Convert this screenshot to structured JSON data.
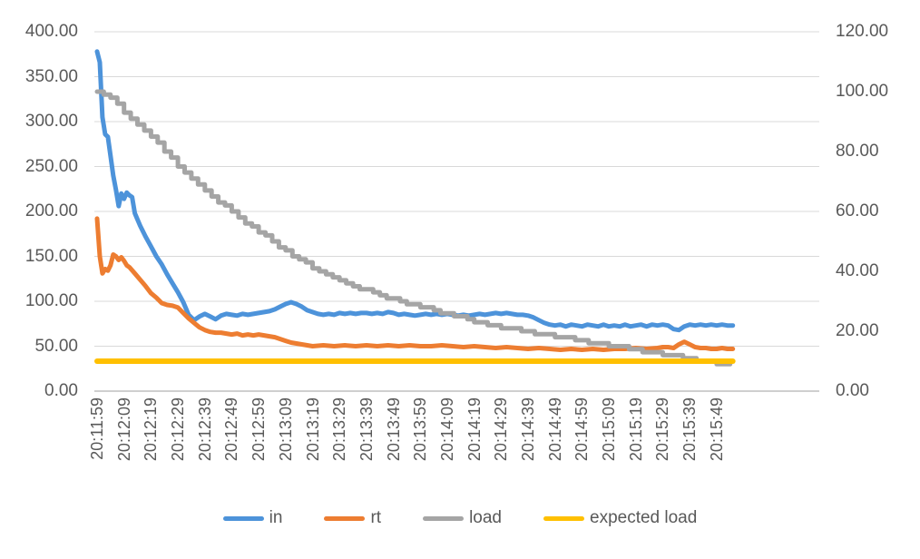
{
  "chart_data": {
    "type": "line",
    "title": "",
    "grid": true,
    "legend_position": "bottom",
    "x_axis": {
      "start_time": "20:11:59",
      "label_interval_seconds": 10,
      "labels": [
        "20:11:59",
        "20:12:09",
        "20:12:19",
        "20:12:29",
        "20:12:39",
        "20:12:49",
        "20:12:59",
        "20:13:09",
        "20:13:19",
        "20:13:29",
        "20:13:39",
        "20:13:49",
        "20:13:59",
        "20:14:09",
        "20:14:19",
        "20:14:29",
        "20:14:39",
        "20:14:49",
        "20:14:59",
        "20:15:09",
        "20:15:19",
        "20:15:29",
        "20:15:39",
        "20:15:49"
      ]
    },
    "y_axis_left": {
      "min": 0,
      "max": 400,
      "step": 50,
      "tick_labels": [
        "400.00",
        "350.00",
        "300.00",
        "250.00",
        "200.00",
        "150.00",
        "100.00",
        "50.00",
        "0.00"
      ]
    },
    "y_axis_right": {
      "min": 0,
      "max": 120,
      "step": 20,
      "tick_labels": [
        "120.00",
        "100.00",
        "80.00",
        "60.00",
        "40.00",
        "20.00",
        "0.00"
      ]
    },
    "legend": [
      "in",
      "rt",
      "load",
      "expected load"
    ],
    "series": [
      {
        "name": "in",
        "color": "#4D93DA",
        "axis": "left",
        "stepped": false,
        "stroke_width": 5,
        "points": [
          [
            0,
            378
          ],
          [
            1,
            366
          ],
          [
            2,
            305
          ],
          [
            3,
            286
          ],
          [
            4,
            283
          ],
          [
            5,
            262
          ],
          [
            6,
            240
          ],
          [
            7,
            224
          ],
          [
            8,
            206
          ],
          [
            9,
            220
          ],
          [
            10,
            214
          ],
          [
            11,
            221
          ],
          [
            12,
            218
          ],
          [
            13,
            216
          ],
          [
            14,
            198
          ],
          [
            16,
            184
          ],
          [
            18,
            172
          ],
          [
            20,
            161
          ],
          [
            22,
            150
          ],
          [
            24,
            141
          ],
          [
            26,
            130
          ],
          [
            28,
            120
          ],
          [
            30,
            110
          ],
          [
            32,
            99
          ],
          [
            34,
            85
          ],
          [
            36,
            79
          ],
          [
            38,
            83
          ],
          [
            40,
            86
          ],
          [
            42,
            83
          ],
          [
            44,
            80
          ],
          [
            46,
            84
          ],
          [
            48,
            86
          ],
          [
            50,
            85
          ],
          [
            52,
            84
          ],
          [
            54,
            86
          ],
          [
            56,
            85
          ],
          [
            58,
            86
          ],
          [
            60,
            87
          ],
          [
            62,
            88
          ],
          [
            64,
            89
          ],
          [
            66,
            91
          ],
          [
            68,
            94
          ],
          [
            70,
            97
          ],
          [
            72,
            99
          ],
          [
            74,
            97
          ],
          [
            76,
            94
          ],
          [
            78,
            90
          ],
          [
            80,
            88
          ],
          [
            82,
            86
          ],
          [
            84,
            85
          ],
          [
            86,
            86
          ],
          [
            88,
            85
          ],
          [
            90,
            87
          ],
          [
            92,
            86
          ],
          [
            94,
            87
          ],
          [
            96,
            86
          ],
          [
            98,
            87
          ],
          [
            100,
            87
          ],
          [
            102,
            86
          ],
          [
            104,
            87
          ],
          [
            106,
            86
          ],
          [
            108,
            88
          ],
          [
            110,
            87
          ],
          [
            112,
            85
          ],
          [
            114,
            86
          ],
          [
            116,
            85
          ],
          [
            118,
            84
          ],
          [
            120,
            85
          ],
          [
            122,
            86
          ],
          [
            124,
            85
          ],
          [
            126,
            86
          ],
          [
            128,
            85
          ],
          [
            130,
            86
          ],
          [
            132,
            85
          ],
          [
            134,
            84
          ],
          [
            136,
            85
          ],
          [
            138,
            84
          ],
          [
            140,
            85
          ],
          [
            142,
            86
          ],
          [
            144,
            85
          ],
          [
            146,
            86
          ],
          [
            148,
            87
          ],
          [
            150,
            86
          ],
          [
            152,
            87
          ],
          [
            154,
            86
          ],
          [
            156,
            85
          ],
          [
            158,
            85
          ],
          [
            160,
            84
          ],
          [
            162,
            82
          ],
          [
            164,
            79
          ],
          [
            166,
            76
          ],
          [
            168,
            74
          ],
          [
            170,
            73
          ],
          [
            172,
            74
          ],
          [
            174,
            72
          ],
          [
            176,
            74
          ],
          [
            178,
            73
          ],
          [
            180,
            72
          ],
          [
            182,
            74
          ],
          [
            184,
            73
          ],
          [
            186,
            72
          ],
          [
            188,
            74
          ],
          [
            190,
            72
          ],
          [
            192,
            73
          ],
          [
            194,
            72
          ],
          [
            196,
            74
          ],
          [
            198,
            72
          ],
          [
            200,
            73
          ],
          [
            202,
            74
          ],
          [
            204,
            72
          ],
          [
            206,
            74
          ],
          [
            208,
            73
          ],
          [
            210,
            74
          ],
          [
            212,
            73
          ],
          [
            214,
            69
          ],
          [
            216,
            68
          ],
          [
            218,
            72
          ],
          [
            220,
            74
          ],
          [
            222,
            73
          ],
          [
            224,
            74
          ],
          [
            226,
            73
          ],
          [
            228,
            74
          ],
          [
            230,
            73
          ],
          [
            232,
            74
          ],
          [
            234,
            73
          ],
          [
            236,
            73
          ]
        ]
      },
      {
        "name": "rt",
        "color": "#ED7D31",
        "axis": "left",
        "stepped": false,
        "stroke_width": 5,
        "points": [
          [
            0,
            192
          ],
          [
            1,
            150
          ],
          [
            2,
            131
          ],
          [
            3,
            136
          ],
          [
            4,
            134
          ],
          [
            5,
            140
          ],
          [
            6,
            152
          ],
          [
            7,
            150
          ],
          [
            8,
            146
          ],
          [
            9,
            149
          ],
          [
            10,
            145
          ],
          [
            11,
            140
          ],
          [
            12,
            138
          ],
          [
            14,
            131
          ],
          [
            16,
            124
          ],
          [
            18,
            117
          ],
          [
            20,
            109
          ],
          [
            22,
            104
          ],
          [
            24,
            98
          ],
          [
            26,
            96
          ],
          [
            28,
            95
          ],
          [
            30,
            93
          ],
          [
            32,
            87
          ],
          [
            34,
            81
          ],
          [
            36,
            76
          ],
          [
            38,
            71
          ],
          [
            40,
            68
          ],
          [
            42,
            66
          ],
          [
            44,
            65
          ],
          [
            46,
            65
          ],
          [
            48,
            64
          ],
          [
            50,
            63
          ],
          [
            52,
            64
          ],
          [
            54,
            62
          ],
          [
            56,
            63
          ],
          [
            58,
            62
          ],
          [
            60,
            63
          ],
          [
            62,
            62
          ],
          [
            64,
            61
          ],
          [
            66,
            60
          ],
          [
            68,
            58
          ],
          [
            70,
            56
          ],
          [
            72,
            54
          ],
          [
            74,
            53
          ],
          [
            76,
            52
          ],
          [
            78,
            51
          ],
          [
            80,
            50
          ],
          [
            84,
            51
          ],
          [
            88,
            50
          ],
          [
            92,
            51
          ],
          [
            96,
            50
          ],
          [
            100,
            51
          ],
          [
            104,
            50
          ],
          [
            108,
            51
          ],
          [
            112,
            50
          ],
          [
            116,
            51
          ],
          [
            120,
            50
          ],
          [
            124,
            50
          ],
          [
            128,
            51
          ],
          [
            132,
            50
          ],
          [
            136,
            49
          ],
          [
            140,
            50
          ],
          [
            144,
            49
          ],
          [
            148,
            48
          ],
          [
            152,
            49
          ],
          [
            156,
            48
          ],
          [
            160,
            47
          ],
          [
            164,
            48
          ],
          [
            168,
            47
          ],
          [
            172,
            46
          ],
          [
            176,
            47
          ],
          [
            180,
            46
          ],
          [
            184,
            47
          ],
          [
            188,
            46
          ],
          [
            192,
            47
          ],
          [
            196,
            47
          ],
          [
            200,
            48
          ],
          [
            204,
            47
          ],
          [
            208,
            48
          ],
          [
            210,
            49
          ],
          [
            212,
            49
          ],
          [
            214,
            48
          ],
          [
            216,
            52
          ],
          [
            218,
            55
          ],
          [
            220,
            52
          ],
          [
            222,
            49
          ],
          [
            224,
            48
          ],
          [
            226,
            48
          ],
          [
            228,
            47
          ],
          [
            230,
            47
          ],
          [
            232,
            48
          ],
          [
            234,
            47
          ],
          [
            236,
            47
          ]
        ]
      },
      {
        "name": "load",
        "color": "#A5A5A5",
        "axis": "right",
        "stepped": true,
        "stroke_width": 5,
        "points": [
          [
            0,
            100
          ],
          [
            5,
            98
          ],
          [
            10,
            93
          ],
          [
            15,
            89
          ],
          [
            20,
            85
          ],
          [
            25,
            80
          ],
          [
            30,
            75
          ],
          [
            35,
            71
          ],
          [
            40,
            67
          ],
          [
            45,
            63
          ],
          [
            50,
            60
          ],
          [
            55,
            56
          ],
          [
            60,
            53
          ],
          [
            65,
            50
          ],
          [
            70,
            46.5
          ],
          [
            75,
            44
          ],
          [
            80,
            41
          ],
          [
            85,
            38.5
          ],
          [
            90,
            36.5
          ],
          [
            95,
            35
          ],
          [
            100,
            33.5
          ],
          [
            105,
            32
          ],
          [
            110,
            30.5
          ],
          [
            115,
            29.3
          ],
          [
            120,
            28.2
          ],
          [
            125,
            27
          ],
          [
            130,
            25.8
          ],
          [
            135,
            24.6
          ],
          [
            140,
            23.4
          ],
          [
            145,
            22.2
          ],
          [
            150,
            21.2
          ],
          [
            155,
            20.5
          ],
          [
            160,
            19.8
          ],
          [
            165,
            19
          ],
          [
            170,
            18.2
          ],
          [
            175,
            17.5
          ],
          [
            180,
            16.8
          ],
          [
            185,
            16
          ],
          [
            190,
            15.2
          ],
          [
            195,
            14.5
          ],
          [
            200,
            13.7
          ],
          [
            205,
            13
          ],
          [
            210,
            12.2
          ],
          [
            215,
            11.5
          ],
          [
            220,
            10.7
          ],
          [
            225,
            10
          ],
          [
            230,
            9.2
          ],
          [
            236,
            8.4
          ]
        ]
      },
      {
        "name": "expected load",
        "color": "#FFC000",
        "axis": "right",
        "stepped": false,
        "stroke_width": 6,
        "points": [
          [
            0,
            10
          ],
          [
            236,
            10
          ]
        ]
      }
    ]
  },
  "colors": {
    "axis_text": "#595959",
    "gridline": "#D9D9D9",
    "axis_line": "#BFBFBF",
    "background": "#FFFFFF"
  }
}
